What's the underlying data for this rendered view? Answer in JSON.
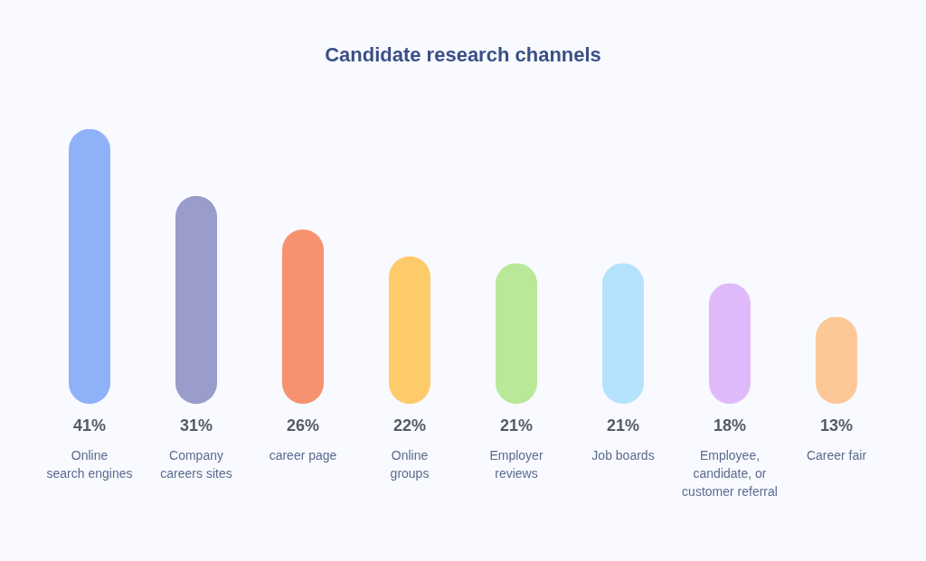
{
  "chart_data": {
    "type": "bar",
    "title": "Candidate research channels",
    "categories": [
      "Online\nsearch engines",
      "Company\ncareers sites",
      "career page",
      "Online\ngroups",
      "Employer\nreviews",
      "Job boards",
      "Employee,\ncandidate, or\ncustomer referral",
      "Career fair"
    ],
    "values": [
      41,
      31,
      26,
      22,
      21,
      21,
      18,
      13
    ],
    "colors": [
      "#8fb1f8",
      "#9a9ccc",
      "#f79270",
      "#fecb6b",
      "#b9e898",
      "#b5e3fd",
      "#dfbafa",
      "#fdc897"
    ],
    "value_labels": [
      "41%",
      "31%",
      "26%",
      "22%",
      "21%",
      "21%",
      "18%",
      "13%"
    ],
    "grid": false
  }
}
